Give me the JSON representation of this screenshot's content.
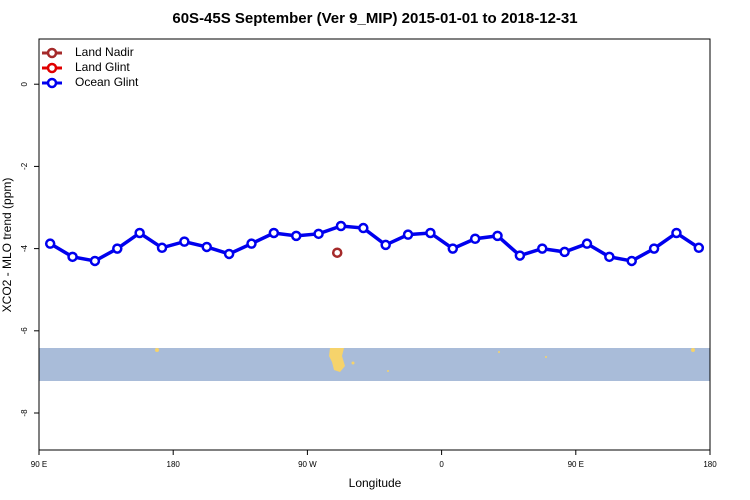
{
  "chart_data": {
    "type": "line",
    "title": "60S-45S September (Ver 9_MIP)   2015-01-01 to 2018-12-31",
    "x_label": "Longitude",
    "y_label": "XCO2 - MLO trend (ppm)",
    "xlim": [
      90,
      540
    ],
    "ylim": [
      -8.9,
      1.1
    ],
    "xticks": [
      {
        "value": 90,
        "label": "90 E"
      },
      {
        "value": 180,
        "label": "180"
      },
      {
        "value": 270,
        "label": "90 W"
      },
      {
        "value": 360,
        "label": "0"
      },
      {
        "value": 450,
        "label": "90 E"
      },
      {
        "value": 540,
        "label": "180"
      }
    ],
    "yticks": [
      0,
      -2,
      -4,
      -6,
      -8
    ],
    "legend": "top-left",
    "series": [
      {
        "name": "Land Nadir",
        "color": "#a52a2a",
        "x": [
          290
        ],
        "values": [
          -4.1
        ]
      },
      {
        "name": "Land Glint",
        "color": "#e00000",
        "x": [],
        "values": []
      },
      {
        "name": "Ocean Glint",
        "color": "#0000ee",
        "x": [
          97.5,
          112.5,
          127.5,
          142.5,
          157.5,
          172.5,
          187.5,
          202.5,
          217.5,
          232.5,
          247.5,
          262.5,
          277.5,
          292.5,
          307.5,
          322.5,
          337.5,
          352.5,
          367.5,
          382.5,
          397.5,
          412.5,
          427.5,
          442.5,
          457.5,
          472.5,
          487.5,
          502.5,
          517.5,
          532.5
        ],
        "values": [
          -3.88,
          -4.2,
          -4.3,
          -4.0,
          -3.62,
          -3.98,
          -3.83,
          -3.96,
          -4.13,
          -3.88,
          -3.62,
          -3.69,
          -3.64,
          -3.45,
          -3.5,
          -3.91,
          -3.66,
          -3.62,
          -4.0,
          -3.76,
          -3.69,
          -4.17,
          -4.0,
          -4.08,
          -3.88,
          -4.2,
          -4.3,
          -4.0,
          -3.62,
          -3.98
        ]
      }
    ]
  }
}
